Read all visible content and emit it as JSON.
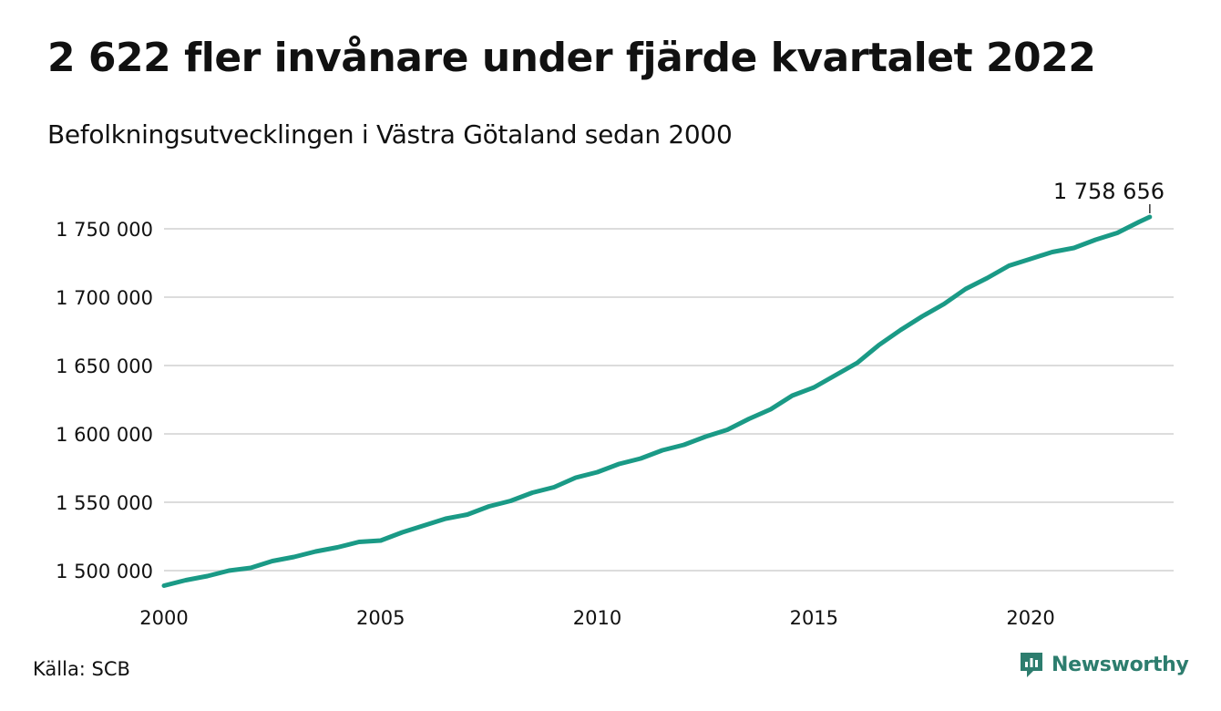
{
  "header": {
    "title": "2 622 fler invånare under fjärde kvartalet 2022",
    "subtitle": "Befolkningsutvecklingen i Västra Götaland sedan 2000"
  },
  "footer": {
    "source": "Källa: SCB",
    "brand": "Newsworthy",
    "brand_icon": "newsworthy-logo-icon"
  },
  "colors": {
    "line": "#1a9a86",
    "grid": "#dcdcdc",
    "brand": "#2d7d6e"
  },
  "chart_data": {
    "type": "line",
    "title": "2 622 fler invånare under fjärde kvartalet 2022",
    "subtitle": "Befolkningsutvecklingen i Västra Götaland sedan 2000",
    "xlabel": "",
    "ylabel": "",
    "grid": true,
    "xlim": [
      2000,
      2023.3
    ],
    "ylim": [
      1490000,
      1760000
    ],
    "x_ticks": [
      2000,
      2005,
      2010,
      2015,
      2020
    ],
    "x_tick_labels": [
      "2000",
      "2005",
      "2010",
      "2015",
      "2020"
    ],
    "y_ticks": [
      1500000,
      1550000,
      1600000,
      1650000,
      1700000,
      1750000
    ],
    "y_tick_labels": [
      "1 500 000",
      "1 550 000",
      "1 600 000",
      "1 650 000",
      "1 700 000",
      "1 750 000"
    ],
    "end_label": "1 758 656",
    "series": [
      {
        "x": [
          2000.0,
          2000.5,
          2001.0,
          2001.5,
          2002.0,
          2002.5,
          2003.0,
          2003.5,
          2004.0,
          2004.5,
          2005.0,
          2005.5,
          2006.0,
          2006.5,
          2007.0,
          2007.5,
          2008.0,
          2008.5,
          2009.0,
          2009.5,
          2010.0,
          2010.5,
          2011.0,
          2011.5,
          2012.0,
          2012.5,
          2013.0,
          2013.5,
          2014.0,
          2014.5,
          2015.0,
          2015.5,
          2016.0,
          2016.5,
          2017.0,
          2017.5,
          2018.0,
          2018.5,
          2019.0,
          2019.5,
          2020.0,
          2020.5,
          2021.0,
          2021.5,
          2022.0,
          2022.5,
          2022.75
        ],
        "values": [
          1489000,
          1493000,
          1496000,
          1500000,
          1502000,
          1507000,
          1510000,
          1514000,
          1517000,
          1521000,
          1522000,
          1528000,
          1533000,
          1538000,
          1541000,
          1547000,
          1551000,
          1557000,
          1561000,
          1568000,
          1572000,
          1578000,
          1582000,
          1588000,
          1592000,
          1598000,
          1603000,
          1611000,
          1618000,
          1628000,
          1634000,
          1643000,
          1652000,
          1665000,
          1676000,
          1686000,
          1695000,
          1706000,
          1714000,
          1723000,
          1728000,
          1733000,
          1736000,
          1742000,
          1747000,
          1755000,
          1758656
        ]
      }
    ]
  }
}
